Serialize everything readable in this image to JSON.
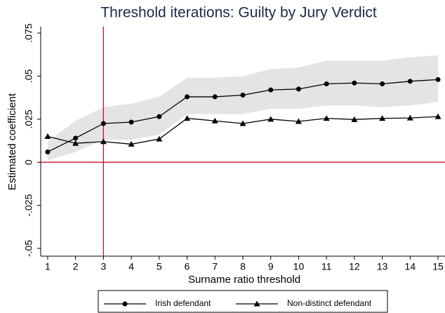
{
  "chart_data": {
    "type": "line",
    "title": "Threshold iterations: Guilty by Jury Verdict",
    "x_label": "Surname ratio threshold",
    "y_label": "Estimated coefficient",
    "x": [
      1,
      2,
      3,
      4,
      5,
      6,
      7,
      8,
      9,
      10,
      11,
      12,
      13,
      14,
      15
    ],
    "series": [
      {
        "name": "Irish defendant",
        "color": "#000000",
        "marker": "circle",
        "values": [
          0.006,
          0.014,
          0.0225,
          0.0233,
          0.0265,
          0.038,
          0.038,
          0.039,
          0.042,
          0.0425,
          0.0455,
          0.046,
          0.0455,
          0.047,
          0.048
        ],
        "ci_upper": [
          0.012,
          0.024,
          0.032,
          0.034,
          0.038,
          0.049,
          0.049,
          0.05,
          0.054,
          0.055,
          0.059,
          0.059,
          0.059,
          0.061,
          0.062
        ],
        "ci_lower": [
          0.001,
          0.006,
          0.013,
          0.013,
          0.016,
          0.028,
          0.028,
          0.028,
          0.031,
          0.031,
          0.033,
          0.033,
          0.032,
          0.033,
          0.035
        ],
        "ci_color": "#e4e4e4"
      },
      {
        "name": "Non-distinct defendant",
        "color": "#000000",
        "marker": "triangle",
        "values": [
          0.015,
          0.011,
          0.012,
          0.0105,
          0.0135,
          0.0255,
          0.024,
          0.0225,
          0.025,
          0.0237,
          0.0255,
          0.0248,
          0.0255,
          0.0257,
          0.0265
        ]
      }
    ],
    "xlim": [
      0.75,
      15.25
    ],
    "ylim": [
      -0.0545,
      0.0787
    ],
    "xticks": [
      1,
      2,
      3,
      4,
      5,
      6,
      7,
      8,
      9,
      10,
      11,
      12,
      13,
      14,
      15
    ],
    "yticks": [
      {
        "value": -0.05,
        "label": "-.05"
      },
      {
        "value": -0.025,
        "label": "-.025"
      },
      0,
      {
        "value": 0.025,
        "label": ".025"
      },
      {
        "value": 0.05,
        "label": ".05"
      },
      {
        "value": 0.075,
        "label": ".075"
      }
    ],
    "reference_lines": {
      "y": 0,
      "x": 3,
      "color": "#c8102e"
    },
    "legend": "bottom"
  }
}
